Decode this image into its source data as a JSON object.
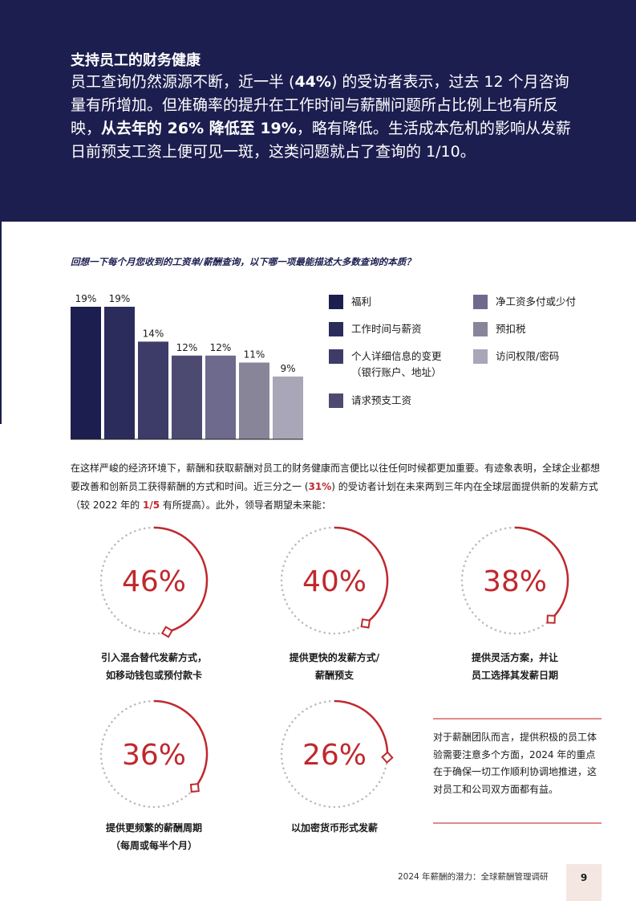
{
  "hero": {
    "title": "支持员工的财务健康",
    "body_1": "员工查询仍然源源不断，近一半 (",
    "body_bold_1": "44%",
    "body_2": ") 的受访者表示，过去 12 个月咨询量有所增加。但准确率的提升在工作时间与薪酬问题所占比例上也有所反映，",
    "body_bold_2": "从去年的 26% 降低至 19%",
    "body_3": "，略有降低。生活成本危机的影响从发薪日前预支工资上便可见一斑，这类问题就占了查询的 1/10。"
  },
  "question": "回想一下每个月您收到的工资单/薪酬查询，以下哪一项最能描述大多数查询的本质？",
  "chart_data": {
    "type": "bar",
    "categories": [
      "福利",
      "工作时间与薪资",
      "个人详细信息的变更（银行账户、地址）",
      "请求预支工资",
      "净工资多付或少付",
      "预扣税",
      "访问权限/密码"
    ],
    "values": [
      19,
      19,
      14,
      12,
      12,
      11,
      9
    ],
    "value_labels": [
      "19%",
      "19%",
      "14%",
      "12%",
      "12%",
      "11%",
      "9%"
    ],
    "colors": [
      "#1c1e4f",
      "#2b2c5c",
      "#3d3c68",
      "#4d4a72",
      "#6e6a8e",
      "#898599",
      "#a9a6b8"
    ],
    "ylim": [
      0,
      19
    ],
    "legend_position": "right"
  },
  "legend": [
    {
      "label": "福利"
    },
    {
      "label": "工作时间与薪资"
    },
    {
      "label": "个人详细信息的变更",
      "label2": "（银行账户、地址）"
    },
    {
      "label": "请求预支工资"
    },
    {
      "label": "净工资多付或少付"
    },
    {
      "label": "预扣税"
    },
    {
      "label": "访问权限/密码"
    }
  ],
  "paragraph": {
    "p1": "在这样严峻的经济环境下，薪酬和获取薪酬对员工的财务健康而言便比以往任何时候都更加重要。有迹象表明，全球企业都想要改善和创新员工获得薪酬的方式和时间。近三分之一 (",
    "red1": "31%",
    "p2": ") 的受访者计划在未来两到三年内在全球层面提供新的发薪方式（较 2022 年的 ",
    "red2": "1/5",
    "p3": " 有所提高）。此外，领导者期望未来能："
  },
  "gauges": [
    {
      "value": 46,
      "label": "46%",
      "line1": "引入混合替代发薪方式，",
      "line2": "如移动钱包或预付款卡"
    },
    {
      "value": 40,
      "label": "40%",
      "line1": "提供更快的发薪方式/",
      "line2": "薪酬预支"
    },
    {
      "value": 38,
      "label": "38%",
      "line1": "提供灵活方案，并让",
      "line2": "员工选择其发薪日期"
    },
    {
      "value": 36,
      "label": "36%",
      "line1": "提供更频繁的薪酬周期",
      "line2": "（每周或每半个月）"
    },
    {
      "value": 26,
      "label": "26%",
      "line1": "以加密货币形式发薪",
      "line2": ""
    }
  ],
  "callout": "对于薪酬团队而言，提供积极的员工体验需要注意多个方面，2024 年的重点在于确保一切工作顺利协调地推进，这对员工和公司双方面都有益。",
  "footer": {
    "text": "2024 年薪酬的潜力：全球薪酬管理调研",
    "page": "9"
  },
  "colors": {
    "navy": "#1c1e4f",
    "accent_red": "#c0282d",
    "dot_grey": "#b9b9b9"
  }
}
